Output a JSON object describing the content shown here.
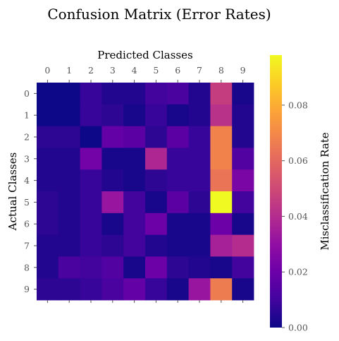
{
  "chart_data": {
    "type": "heatmap",
    "title": "Confusion Matrix (Error Rates)",
    "xlabel": "Predicted Classes",
    "ylabel": "Actual Classes",
    "x_categories": [
      "0",
      "1",
      "2",
      "3",
      "4",
      "5",
      "6",
      "7",
      "8",
      "9"
    ],
    "y_categories": [
      "0",
      "1",
      "2",
      "3",
      "4",
      "5",
      "6",
      "7",
      "8",
      "9"
    ],
    "colormap": "plasma",
    "colorbar": {
      "label": "Misclassification Rate",
      "range": [
        0,
        0.098
      ],
      "ticks": [
        0.0,
        0.02,
        0.04,
        0.06,
        0.08
      ],
      "tick_labels": [
        "0.00",
        "0.02",
        "0.04",
        "0.06",
        "0.08"
      ]
    },
    "values": [
      [
        0.0,
        0.0,
        0.008,
        0.004,
        0.004,
        0.01,
        0.012,
        0.004,
        0.046,
        0.002
      ],
      [
        0.0,
        0.0,
        0.008,
        0.006,
        0.002,
        0.008,
        0.002,
        0.004,
        0.042,
        0.004
      ],
      [
        0.006,
        0.006,
        0.0,
        0.018,
        0.016,
        0.006,
        0.016,
        0.008,
        0.068,
        0.004
      ],
      [
        0.004,
        0.004,
        0.022,
        0.002,
        0.002,
        0.038,
        0.008,
        0.008,
        0.068,
        0.014
      ],
      [
        0.004,
        0.004,
        0.008,
        0.004,
        0.002,
        0.006,
        0.008,
        0.008,
        0.064,
        0.024
      ],
      [
        0.006,
        0.004,
        0.008,
        0.032,
        0.01,
        0.002,
        0.016,
        0.006,
        0.098,
        0.01
      ],
      [
        0.006,
        0.004,
        0.008,
        0.002,
        0.01,
        0.02,
        0.002,
        0.002,
        0.02,
        0.002
      ],
      [
        0.004,
        0.004,
        0.008,
        0.006,
        0.01,
        0.004,
        0.002,
        0.002,
        0.036,
        0.04
      ],
      [
        0.004,
        0.012,
        0.01,
        0.014,
        0.002,
        0.02,
        0.006,
        0.004,
        0.002,
        0.01
      ],
      [
        0.006,
        0.006,
        0.008,
        0.012,
        0.018,
        0.008,
        0.002,
        0.032,
        0.066,
        0.002
      ]
    ]
  }
}
